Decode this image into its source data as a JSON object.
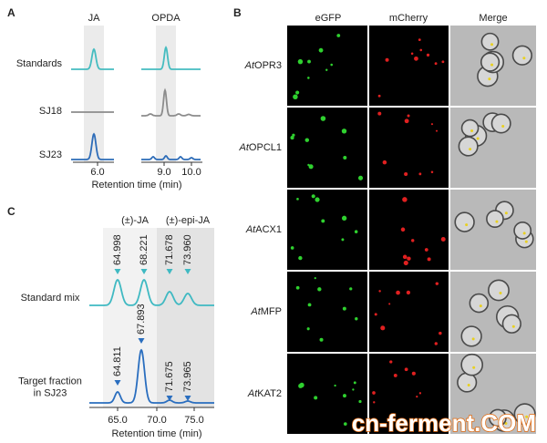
{
  "panel_a": {
    "label": "A",
    "columns": [
      "JA",
      "OPDA"
    ],
    "rows": [
      "Standards",
      "SJ18",
      "SJ23"
    ],
    "x_ticks": [
      "6.0",
      "9.0",
      "10.0"
    ],
    "x_label": "Retention time (min)"
  },
  "panel_b": {
    "label": "B",
    "columns": [
      "eGFP",
      "mCherry",
      "Merge"
    ],
    "rows": [
      {
        "prefix": "At",
        "name": "OPR3"
      },
      {
        "prefix": "At",
        "name": "OPCL1"
      },
      {
        "prefix": "At",
        "name": "ACX1"
      },
      {
        "prefix": "At",
        "name": "MFP"
      },
      {
        "prefix": "At",
        "name": "KAT2"
      }
    ]
  },
  "panel_c": {
    "label": "C",
    "groups": [
      "(±)-JA",
      "(±)-epi-JA"
    ],
    "traces": [
      {
        "name": [
          "Standard mix"
        ],
        "peaks": [
          "64.998",
          "68.221",
          "71.678",
          "73.960"
        ]
      },
      {
        "name": [
          "Target fraction",
          "in SJ23"
        ],
        "peaks": [
          "64.811",
          "67.893",
          "71.675",
          "73.965"
        ]
      }
    ],
    "x_ticks": [
      "65.0",
      "70.0",
      "75.0"
    ],
    "x_label": "Retention time (min)"
  },
  "watermark": "cn-ferment.COM"
}
